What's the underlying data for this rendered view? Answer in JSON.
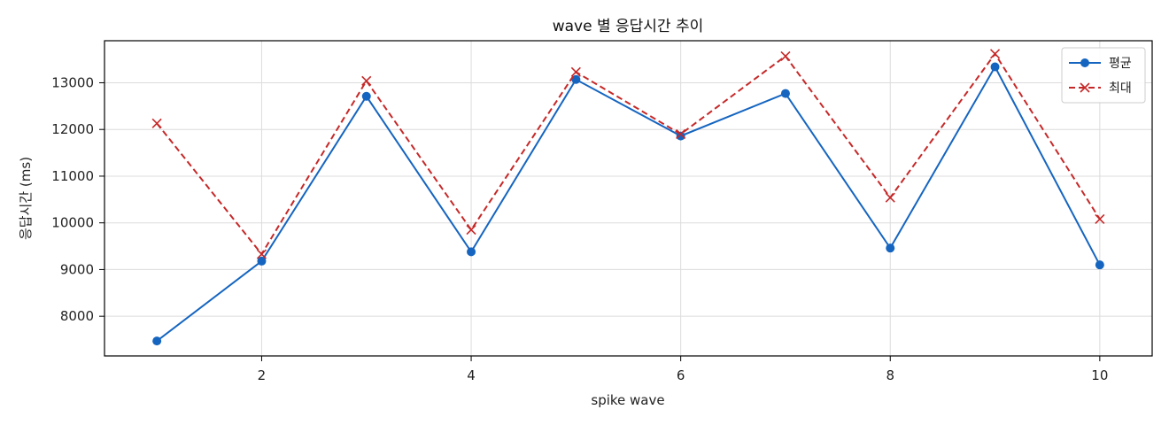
{
  "chart_data": {
    "type": "line",
    "title": "wave 별 응답시간 추이",
    "xlabel": "spike wave",
    "ylabel": "응답시간 (ms)",
    "x": [
      1,
      2,
      3,
      4,
      5,
      6,
      7,
      8,
      9,
      10
    ],
    "xlim": [
      0.5,
      10.5
    ],
    "ylim": [
      7150,
      13900
    ],
    "xticks": [
      2,
      4,
      6,
      8,
      10
    ],
    "yticks": [
      8000,
      9000,
      10000,
      11000,
      12000,
      13000
    ],
    "grid": true,
    "legend_position": "top-right",
    "series": [
      {
        "name": "평균",
        "color": "#1565c0",
        "line_style": "solid",
        "marker": "circle",
        "values": [
          7470,
          9180,
          12710,
          9380,
          13070,
          11860,
          12770,
          9460,
          13340,
          9100
        ]
      },
      {
        "name": "최대",
        "color": "#c62828",
        "line_style": "dashed",
        "marker": "x",
        "values": [
          12130,
          9330,
          13040,
          9850,
          13230,
          11900,
          13570,
          10540,
          13620,
          10080
        ]
      }
    ]
  }
}
